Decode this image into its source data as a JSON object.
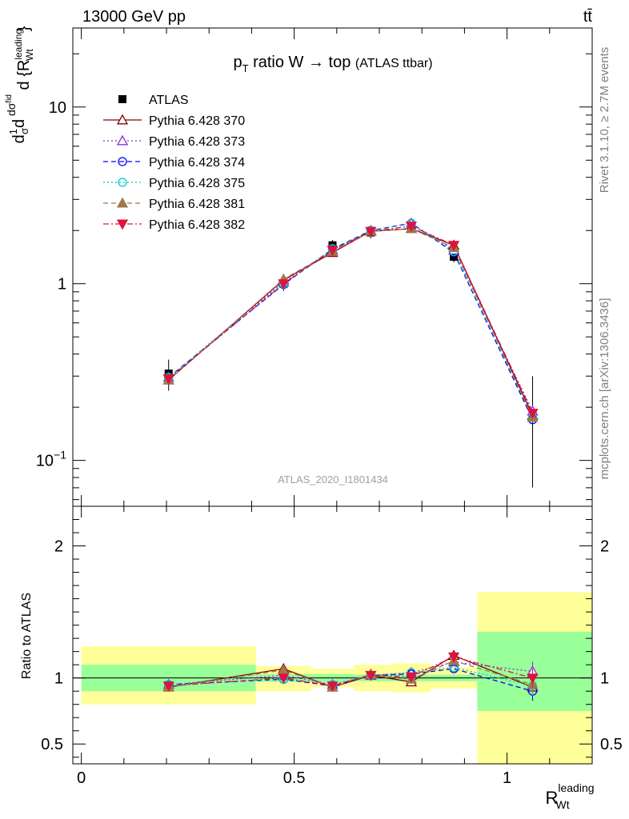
{
  "header": {
    "left": "13000 GeV pp",
    "right": "tt̄"
  },
  "side_labels": {
    "rivet": "Rivet 3.1.10, ≥ 2.7M events",
    "mcplots": "mcplots.cern.ch [arXiv:1306.3436]"
  },
  "watermark": "ATLAS_2020_I1801434",
  "colors": {
    "band_inner": "#99ff99",
    "band_outer": "#ffff99"
  },
  "chart_data": [
    {
      "type": "line",
      "panel": "main",
      "title": "p_T ratio W → top (ATLAS ttbar)",
      "xlabel": "R_Wt^leading",
      "ylabel": "1/σ dσ^fid / d {R_Wt^leading}",
      "xlim": [
        -0.02,
        1.2
      ],
      "ylim": [
        0.055,
        28
      ],
      "yscale": "log",
      "yticks": [
        {
          "value": 0.1,
          "label": "10−1"
        },
        {
          "value": 1,
          "label": "1"
        },
        {
          "value": 10,
          "label": "10"
        }
      ],
      "legend_position": "top-left",
      "x": [
        0.205,
        0.475,
        0.59,
        0.68,
        0.775,
        0.875,
        1.06
      ],
      "data": {
        "name": "ATLAS",
        "values": [
          0.31,
          1.0,
          1.65,
          1.95,
          2.1,
          1.42,
          0.185
        ],
        "x_edges": [
          [
            0.0,
            0.41
          ],
          [
            0.41,
            0.54
          ],
          [
            0.54,
            0.64
          ],
          [
            0.64,
            0.73
          ],
          [
            0.73,
            0.82
          ],
          [
            0.82,
            0.93
          ],
          [
            0.93,
            1.2
          ]
        ],
        "rel_err_inner": [
          0.11,
          0.03,
          0.03,
          0.025,
          0.025,
          0.025,
          0.25
        ],
        "rel_err_outer": [
          0.2,
          0.09,
          0.07,
          0.075,
          0.08,
          0.07,
          0.62
        ]
      },
      "series": [
        {
          "name": "Pythia 6.428 370",
          "color": "#8b0000",
          "marker": "triangle-open",
          "dash": "solid",
          "values": [
            0.285,
            1.05,
            1.5,
            1.98,
            2.05,
            1.65,
            0.18
          ]
        },
        {
          "name": "Pythia 6.428 373",
          "color": "#8a2be2",
          "marker": "triangle-open",
          "dash": "dotted",
          "values": [
            0.295,
            1.02,
            1.55,
            2.0,
            2.2,
            1.55,
            0.19
          ]
        },
        {
          "name": "Pythia 6.428 374",
          "color": "#0000ff",
          "marker": "circle-open",
          "dash": "dashed",
          "values": [
            0.295,
            0.99,
            1.57,
            2.0,
            2.2,
            1.5,
            0.17
          ]
        },
        {
          "name": "Pythia 6.428 375",
          "color": "#00c8c8",
          "marker": "circle-open",
          "dash": "dotted",
          "values": [
            0.295,
            1.0,
            1.58,
            2.0,
            2.2,
            1.52,
            0.175
          ]
        },
        {
          "name": "Pythia 6.428 381",
          "color": "#a0784a",
          "marker": "triangle-filled",
          "dash": "dashed",
          "values": [
            0.285,
            1.06,
            1.52,
            1.98,
            2.05,
            1.6,
            0.175
          ]
        },
        {
          "name": "Pythia 6.428 382",
          "color": "#dc143c",
          "marker": "triangle-down-filled",
          "dash": "dashdot",
          "values": [
            0.29,
            1.0,
            1.55,
            1.98,
            2.12,
            1.65,
            0.185
          ]
        }
      ]
    },
    {
      "type": "line",
      "panel": "ratio",
      "ylabel": "Ratio to ATLAS",
      "xlabel": "R_Wt^leading",
      "xlim": [
        -0.02,
        1.2
      ],
      "ylim": [
        0.35,
        2.3
      ],
      "xticks": [
        {
          "value": 0,
          "label": "0"
        },
        {
          "value": 0.5,
          "label": "0.5"
        },
        {
          "value": 1,
          "label": "1"
        }
      ],
      "yticks": [
        {
          "value": 0.5,
          "label": "0.5"
        },
        {
          "value": 1,
          "label": "1"
        },
        {
          "value": 2,
          "label": "2"
        }
      ],
      "bands": [
        {
          "x": [
            0.0,
            0.41
          ],
          "inner": [
            0.9,
            1.1
          ],
          "outer": [
            0.8,
            1.24
          ]
        },
        {
          "x": [
            0.41,
            0.54
          ],
          "inner": [
            0.97,
            1.03
          ],
          "outer": [
            0.9,
            1.09
          ]
        },
        {
          "x": [
            0.54,
            0.64
          ],
          "inner": [
            0.97,
            1.03
          ],
          "outer": [
            0.93,
            1.07
          ]
        },
        {
          "x": [
            0.64,
            0.73
          ],
          "inner": [
            0.975,
            1.025
          ],
          "outer": [
            0.9,
            1.1
          ]
        },
        {
          "x": [
            0.73,
            0.82
          ],
          "inner": [
            0.975,
            1.025
          ],
          "outer": [
            0.89,
            1.11
          ]
        },
        {
          "x": [
            0.82,
            0.93
          ],
          "inner": [
            0.975,
            1.025
          ],
          "outer": [
            0.92,
            1.08
          ]
        },
        {
          "x": [
            0.93,
            1.2
          ],
          "inner": [
            0.75,
            1.35
          ],
          "outer": [
            0.35,
            1.65
          ]
        }
      ],
      "x": [
        0.205,
        0.475,
        0.59,
        0.68,
        0.775,
        0.875,
        1.06
      ],
      "series": [
        {
          "name": "Pythia 6.428 370",
          "values": [
            0.93,
            1.07,
            0.93,
            1.02,
            0.97,
            1.17,
            0.93
          ]
        },
        {
          "name": "Pythia 6.428 373",
          "values": [
            0.95,
            1.02,
            0.95,
            1.02,
            1.04,
            1.12,
            1.05
          ]
        },
        {
          "name": "Pythia 6.428 374",
          "values": [
            0.95,
            0.99,
            0.94,
            1.02,
            1.03,
            1.07,
            0.9
          ]
        },
        {
          "name": "Pythia 6.428 375",
          "values": [
            0.95,
            0.99,
            0.95,
            1.02,
            1.04,
            1.08,
            0.94
          ]
        },
        {
          "name": "Pythia 6.428 381",
          "values": [
            0.93,
            1.06,
            0.93,
            1.03,
            0.99,
            1.13,
            0.95
          ]
        },
        {
          "name": "Pythia 6.428 382",
          "values": [
            0.94,
            1.0,
            0.94,
            1.02,
            1.01,
            1.16,
            1.0
          ]
        }
      ]
    }
  ]
}
